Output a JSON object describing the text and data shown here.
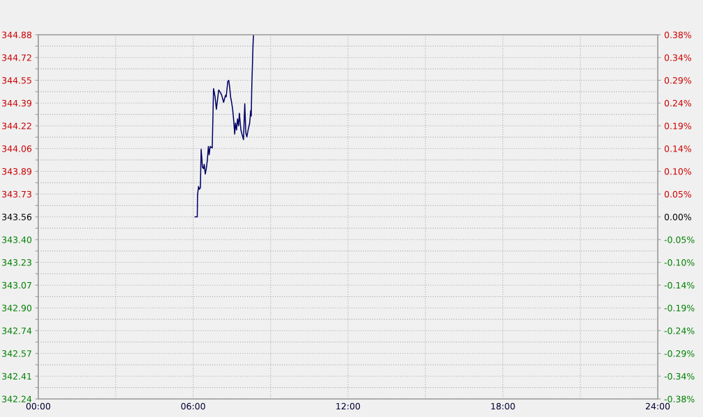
{
  "chart_data": {
    "type": "line",
    "x": [
      6.077,
      6.16,
      6.17,
      6.21,
      6.24,
      6.28,
      6.31,
      6.36,
      6.4,
      6.43,
      6.47,
      6.51,
      6.55,
      6.59,
      6.62,
      6.66,
      6.74,
      6.79,
      6.85,
      6.9,
      6.94,
      6.99,
      7.06,
      7.11,
      7.18,
      7.25,
      7.28,
      7.34,
      7.38,
      7.42,
      7.45,
      7.49,
      7.53,
      7.57,
      7.61,
      7.64,
      7.68,
      7.72,
      7.76,
      7.79,
      7.85,
      7.89,
      7.95,
      8.0,
      8.04,
      8.08,
      8.13,
      8.19,
      8.23,
      8.25,
      8.27,
      8.32,
      8.34
    ],
    "series": [
      {
        "color": "#000066",
        "values": [
          343.56,
          343.56,
          343.72,
          343.78,
          343.76,
          343.77,
          344.05,
          343.92,
          343.91,
          343.94,
          343.87,
          343.91,
          343.97,
          344.07,
          344.01,
          344.07,
          344.06,
          344.49,
          344.43,
          344.34,
          344.4,
          344.48,
          344.46,
          344.44,
          344.39,
          344.44,
          344.43,
          344.54,
          344.55,
          344.49,
          344.43,
          344.39,
          344.34,
          344.26,
          344.16,
          344.24,
          344.19,
          344.27,
          344.22,
          344.31,
          344.19,
          344.16,
          344.12,
          344.38,
          344.17,
          344.14,
          344.19,
          344.24,
          344.33,
          344.29,
          344.49,
          344.81,
          344.88
        ]
      }
    ],
    "xlim": [
      0,
      24
    ],
    "xticks": [
      {
        "value": 0,
        "label": "00:00"
      },
      {
        "value": 3,
        "label": null
      },
      {
        "value": 6,
        "label": "06:00"
      },
      {
        "value": 9,
        "label": null
      },
      {
        "value": 12,
        "label": "12:00"
      },
      {
        "value": 15,
        "label": null
      },
      {
        "value": 18,
        "label": "18:00"
      },
      {
        "value": 21,
        "label": null
      },
      {
        "value": 24,
        "label": "24:00"
      }
    ],
    "ylim": [
      342.24,
      344.88
    ],
    "yticks": [
      342.24,
      {
        "value": 342.3225,
        "label": null
      },
      {
        "value": 342.405,
        "label": "342.41"
      },
      {
        "value": 342.4875,
        "label": null
      },
      342.57,
      {
        "value": 342.6525,
        "label": null
      },
      {
        "value": 342.735,
        "label": "342.74"
      },
      {
        "value": 342.8175,
        "label": null
      },
      {
        "value": 342.9,
        "label": "342.90"
      },
      {
        "value": 342.9825,
        "label": null
      },
      {
        "value": 343.065,
        "label": "343.07"
      },
      {
        "value": 343.1475,
        "label": null
      },
      343.23,
      {
        "value": 343.3125,
        "label": null
      },
      {
        "value": 343.395,
        "label": "343.40"
      },
      {
        "value": 343.4775,
        "label": null
      },
      343.56,
      {
        "value": 343.6425,
        "label": null
      },
      {
        "value": 343.725,
        "label": "343.73"
      },
      {
        "value": 343.8075,
        "label": null
      },
      343.89,
      {
        "value": 343.9725,
        "label": null
      },
      {
        "value": 344.055,
        "label": "344.06"
      },
      {
        "value": 344.1375,
        "label": null
      },
      344.22,
      {
        "value": 344.3025,
        "label": null
      },
      {
        "value": 344.385,
        "label": "344.39"
      },
      {
        "value": 344.4675,
        "label": null
      },
      344.55,
      {
        "value": 344.6325,
        "label": null
      },
      {
        "value": 344.715,
        "label": "344.72"
      },
      {
        "value": 344.7975,
        "label": null
      },
      344.88
    ],
    "y2lim": [
      -0.384,
      0.384
    ],
    "y2ticks": [
      {
        "value": -0.384,
        "label": "-0.38%"
      },
      {
        "value": -0.336,
        "label": "-0.34%"
      },
      {
        "value": -0.288,
        "label": "-0.29%"
      },
      {
        "value": -0.24,
        "label": "-0.24%"
      },
      {
        "value": -0.192,
        "label": "-0.19%"
      },
      {
        "value": -0.144,
        "label": "-0.14%"
      },
      {
        "value": -0.096,
        "label": "-0.10%"
      },
      {
        "value": -0.048,
        "label": "-0.05%"
      },
      {
        "value": 0,
        "label": "0.00%"
      },
      {
        "value": 0.048,
        "label": "0.05%"
      },
      {
        "value": 0.096,
        "label": "0.10%"
      },
      {
        "value": 0.144,
        "label": "0.14%"
      },
      {
        "value": 0.192,
        "label": "0.19%"
      },
      {
        "value": 0.24,
        "label": "0.24%"
      },
      {
        "value": 0.288,
        "label": "0.29%"
      },
      {
        "value": 0.336,
        "label": "0.34%"
      },
      {
        "value": 0.384,
        "label": "0.38%"
      }
    ],
    "grid": true,
    "marker": "none",
    "line_style": "solid",
    "legend": false
  }
}
